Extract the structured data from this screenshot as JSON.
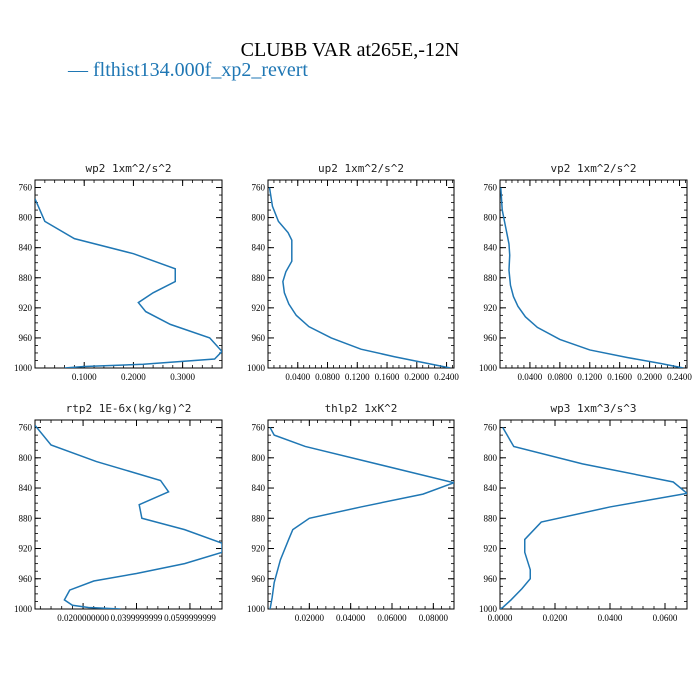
{
  "figure": {
    "title": "CLUBB VAR at265E,-12N",
    "legend_label": "— flthist134.000f_xp2_revert",
    "line_color": "#1f77b4"
  },
  "chart_data": [
    {
      "type": "line",
      "title": "wp2   1xm^2/s^2",
      "xlim": [
        0,
        0.38
      ],
      "ylim": [
        1000,
        750
      ],
      "xticks": [
        0.1,
        0.2,
        0.3
      ],
      "xtick_labels": [
        "0.1000",
        "0.2000",
        "0.3000"
      ],
      "yticks": [
        760,
        800,
        840,
        880,
        920,
        960,
        1000
      ],
      "series": [
        {
          "x": [
            0.0,
            0.02,
            0.08,
            0.2,
            0.285,
            0.285,
            0.24,
            0.21,
            0.225,
            0.275,
            0.355,
            0.38,
            0.365,
            0.22,
            0.1,
            0.06
          ],
          "y": [
            775,
            805,
            828,
            848,
            868,
            885,
            900,
            913,
            925,
            942,
            960,
            978,
            988,
            995,
            998,
            1000
          ]
        }
      ]
    },
    {
      "type": "line",
      "title": "up2   1xm^2/s^2",
      "xlim": [
        0.0,
        0.25
      ],
      "ylim": [
        1000,
        750
      ],
      "xticks": [
        0.04,
        0.08,
        0.12,
        0.16,
        0.2,
        0.24
      ],
      "xtick_labels": [
        "0.0400",
        "0.0800",
        "0.1200",
        "0.1600",
        "0.2000",
        "0.2400"
      ],
      "yticks": [
        760,
        800,
        840,
        880,
        920,
        960,
        1000
      ],
      "series": [
        {
          "x": [
            0.002,
            0.006,
            0.014,
            0.027,
            0.032,
            0.032,
            0.024,
            0.02,
            0.022,
            0.028,
            0.038,
            0.055,
            0.085,
            0.125,
            0.17,
            0.21,
            0.245
          ],
          "y": [
            760,
            785,
            805,
            820,
            830,
            858,
            872,
            885,
            900,
            915,
            930,
            945,
            960,
            975,
            985,
            993,
            1000
          ]
        }
      ]
    },
    {
      "type": "line",
      "title": "vp2   1xm^2/s^2",
      "xlim": [
        0.0,
        0.25
      ],
      "ylim": [
        1000,
        750
      ],
      "xticks": [
        0.04,
        0.08,
        0.12,
        0.16,
        0.2,
        0.24
      ],
      "xtick_labels": [
        "0.0400",
        "0.0800",
        "0.1200",
        "0.1600",
        "0.2000",
        "0.2400"
      ],
      "yticks": [
        760,
        800,
        840,
        880,
        920,
        960,
        1000
      ],
      "series": [
        {
          "x": [
            0.001,
            0.003,
            0.008,
            0.012,
            0.013,
            0.012,
            0.014,
            0.018,
            0.024,
            0.034,
            0.05,
            0.08,
            0.12,
            0.17,
            0.215,
            0.245
          ],
          "y": [
            760,
            790,
            815,
            835,
            850,
            870,
            890,
            905,
            918,
            932,
            946,
            962,
            976,
            986,
            994,
            1000
          ]
        }
      ]
    },
    {
      "type": "line",
      "title": "rtp2   1E-6x(kg/kg)^2",
      "xlim": [
        0.002,
        0.072
      ],
      "ylim": [
        1000,
        750
      ],
      "xticks": [
        0.02,
        0.04,
        0.06
      ],
      "xtick_labels": [
        "0.0200000000",
        "0.0399999999",
        "0.0599999999"
      ],
      "yticks": [
        760,
        800,
        840,
        880,
        920,
        960,
        1000
      ],
      "series": [
        {
          "x": [
            0.002,
            0.008,
            0.025,
            0.049,
            0.052,
            0.041,
            0.042,
            0.058,
            0.072,
            0.072,
            0.058,
            0.04,
            0.024,
            0.015,
            0.013,
            0.016,
            0.022,
            0.034
          ],
          "y": [
            757,
            783,
            805,
            830,
            845,
            862,
            880,
            895,
            913,
            925,
            940,
            953,
            963,
            975,
            988,
            995,
            998,
            1000
          ]
        }
      ]
    },
    {
      "type": "line",
      "title": "thlp2   1xK^2",
      "xlim": [
        0.0,
        0.09
      ],
      "ylim": [
        1000,
        750
      ],
      "xticks": [
        0.02,
        0.04,
        0.06,
        0.08
      ],
      "xtick_labels": [
        "0.02000",
        "0.04000",
        "0.06000",
        "0.08000"
      ],
      "yticks": [
        760,
        800,
        840,
        880,
        920,
        960,
        1000
      ],
      "series": [
        {
          "x": [
            0.001,
            0.003,
            0.018,
            0.09,
            0.075,
            0.045,
            0.02,
            0.012,
            0.01,
            0.006,
            0.003,
            0.002,
            0.001
          ],
          "y": [
            760,
            770,
            785,
            833,
            848,
            865,
            880,
            895,
            908,
            935,
            965,
            985,
            1000
          ]
        }
      ]
    },
    {
      "type": "line",
      "title": "wp3   1xm^3/s^3",
      "xlim": [
        0.0,
        0.068
      ],
      "ylim": [
        1000,
        750
      ],
      "xticks": [
        0.0,
        0.02,
        0.04,
        0.06
      ],
      "xtick_labels": [
        "0.0000",
        "0.0200",
        "0.0400",
        "0.0600"
      ],
      "yticks": [
        760,
        800,
        840,
        880,
        920,
        960,
        1000
      ],
      "series": [
        {
          "x": [
            0.001,
            0.005,
            0.03,
            0.063,
            0.068,
            0.04,
            0.015,
            0.009,
            0.009,
            0.011,
            0.011,
            0.008,
            0.004,
            0.001,
            0.0
          ],
          "y": [
            760,
            785,
            808,
            832,
            847,
            865,
            885,
            908,
            925,
            948,
            960,
            973,
            988,
            998,
            1000
          ]
        }
      ]
    }
  ]
}
